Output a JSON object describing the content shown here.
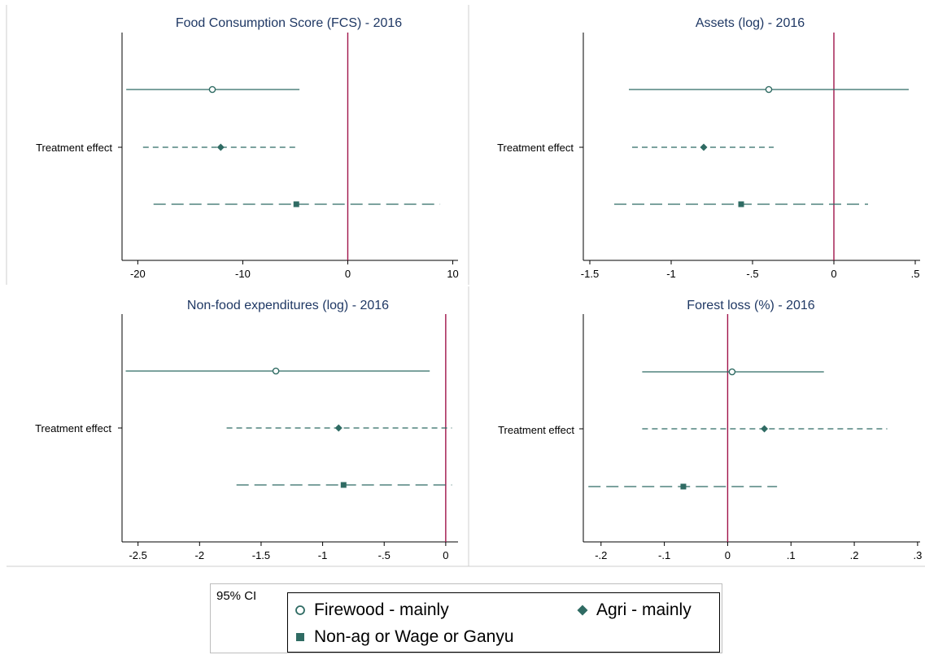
{
  "colors": {
    "series": "#2f6b63",
    "refline": "#a0144a",
    "title": "#1f3864"
  },
  "legend": {
    "ci_label": "95% CI",
    "items": [
      {
        "label": "Firewood - mainly",
        "marker": "hollow-circle"
      },
      {
        "label": "Agri - mainly",
        "marker": "filled-diamond"
      },
      {
        "label": "Non-ag or Wage or Ganyu",
        "marker": "filled-square"
      }
    ]
  },
  "chart_data": [
    {
      "type": "coefficient-plot",
      "title": "Food Consumption Score (FCS) - 2016",
      "ylabel": "Treatment effect",
      "xlim": [
        -21.5,
        10.5
      ],
      "xticks": [
        -20,
        -10,
        0,
        10
      ],
      "xtick_labels": [
        "-20",
        "-10",
        "0",
        "10"
      ],
      "refline": 0,
      "series": [
        {
          "marker": "hollow-circle",
          "line": "solid",
          "estimate": -12.9,
          "ci": [
            -21.1,
            -4.6
          ]
        },
        {
          "marker": "filled-diamond",
          "line": "short-dash",
          "estimate": -12.1,
          "ci": [
            -19.5,
            -4.9
          ]
        },
        {
          "marker": "filled-square",
          "line": "long-dash",
          "estimate": -4.9,
          "ci": [
            -18.5,
            8.8
          ]
        }
      ]
    },
    {
      "type": "coefficient-plot",
      "title": "Assets (log) - 2016",
      "ylabel": "Treatment effect",
      "xlim": [
        -1.54,
        0.53
      ],
      "xticks": [
        -1.5,
        -1,
        -0.5,
        0,
        0.5
      ],
      "xtick_labels": [
        "-1.5",
        "-1",
        "-.5",
        "0",
        ".5"
      ],
      "refline": 0,
      "series": [
        {
          "marker": "hollow-circle",
          "line": "solid",
          "estimate": -0.4,
          "ci": [
            -1.26,
            0.46
          ]
        },
        {
          "marker": "filled-diamond",
          "line": "short-dash",
          "estimate": -0.8,
          "ci": [
            -1.24,
            -0.37
          ]
        },
        {
          "marker": "filled-square",
          "line": "long-dash",
          "estimate": -0.57,
          "ci": [
            -1.35,
            0.21
          ]
        }
      ]
    },
    {
      "type": "coefficient-plot",
      "title": "Non-food expenditures (log) - 2016",
      "ylabel": "Treatment effect",
      "xlim": [
        -2.63,
        0.1
      ],
      "xticks": [
        -2.5,
        -2,
        -1.5,
        -1,
        -0.5,
        0
      ],
      "xtick_labels": [
        "-2.5",
        "-2",
        "-1.5",
        "-1",
        "-.5",
        "0"
      ],
      "refline": 0,
      "series": [
        {
          "marker": "hollow-circle",
          "line": "solid",
          "estimate": -1.38,
          "ci": [
            -2.6,
            -0.13
          ]
        },
        {
          "marker": "filled-diamond",
          "line": "short-dash",
          "estimate": -0.87,
          "ci": [
            -1.78,
            0.05
          ]
        },
        {
          "marker": "filled-square",
          "line": "long-dash",
          "estimate": -0.83,
          "ci": [
            -1.7,
            0.05
          ]
        }
      ]
    },
    {
      "type": "coefficient-plot",
      "title": "Forest loss (%) - 2016",
      "ylabel": "Treatment effect",
      "xlim": [
        -0.228,
        0.304
      ],
      "xticks": [
        -0.2,
        -0.1,
        0,
        0.1,
        0.2,
        0.3
      ],
      "xtick_labels": [
        "-.2",
        "-.1",
        "0",
        ".1",
        ".2",
        ".3"
      ],
      "refline": 0,
      "series": [
        {
          "marker": "hollow-circle",
          "line": "solid",
          "estimate": 0.007,
          "ci": [
            -0.135,
            0.152
          ]
        },
        {
          "marker": "filled-diamond",
          "line": "short-dash",
          "estimate": 0.058,
          "ci": [
            -0.135,
            0.252
          ]
        },
        {
          "marker": "filled-square",
          "line": "long-dash",
          "estimate": -0.07,
          "ci": [
            -0.22,
            0.078
          ]
        }
      ]
    }
  ]
}
